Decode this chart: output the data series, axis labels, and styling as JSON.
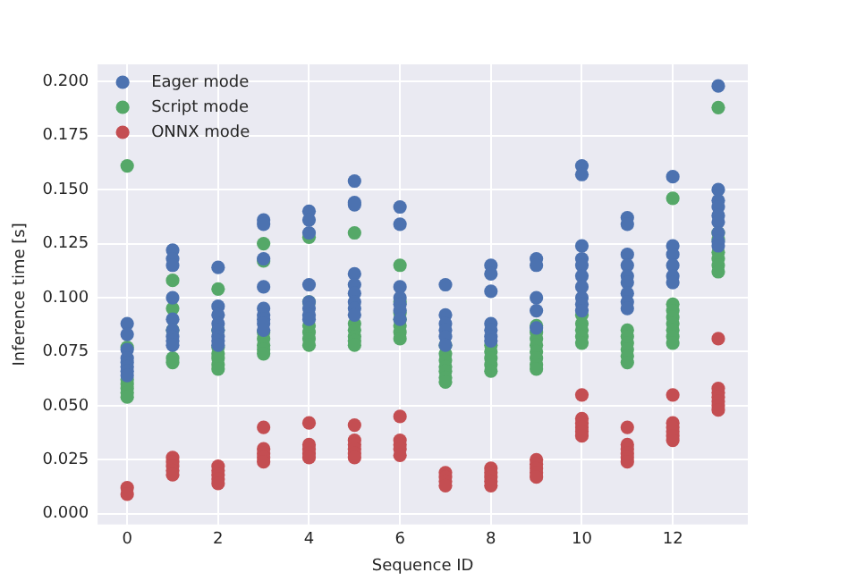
{
  "chart_data": {
    "type": "scatter",
    "xlabel": "Sequence ID",
    "ylabel": "Inference time [s]",
    "xlim": [
      -0.65,
      13.65
    ],
    "xticks": [
      0,
      2,
      4,
      6,
      8,
      10,
      12
    ],
    "ylim": [
      -0.005,
      0.208
    ],
    "yticks": [
      {
        "value": 0,
        "label": "0.000"
      },
      {
        "value": 0.025,
        "label": "0.025"
      },
      {
        "value": 0.05,
        "label": "0.050"
      },
      {
        "value": 0.075,
        "label": "0.075"
      },
      {
        "value": 0.1,
        "label": "0.100"
      },
      {
        "value": 0.125,
        "label": "0.125"
      },
      {
        "value": 0.15,
        "label": "0.150"
      },
      {
        "value": 0.175,
        "label": "0.175"
      },
      {
        "value": 0.2,
        "label": "0.200"
      }
    ],
    "grid": true,
    "legend": "top left",
    "marker": "circle",
    "series": [
      {
        "name": "Eager mode",
        "color": "#4c72b0",
        "x": [
          0,
          0,
          0,
          0,
          0,
          0,
          0,
          0,
          1,
          1,
          1,
          1,
          1,
          1,
          1,
          1,
          1,
          2,
          2,
          2,
          2,
          2,
          2,
          2,
          2,
          3,
          3,
          3,
          3,
          3,
          3,
          3,
          3,
          3,
          4,
          4,
          4,
          4,
          4,
          4,
          4,
          4,
          5,
          5,
          5,
          5,
          5,
          5,
          5,
          5,
          5,
          6,
          6,
          6,
          6,
          6,
          6,
          6,
          7,
          7,
          7,
          7,
          7,
          7,
          8,
          8,
          8,
          8,
          8,
          8,
          8,
          9,
          9,
          9,
          9,
          9,
          10,
          10,
          10,
          10,
          10,
          10,
          10,
          10,
          10,
          10,
          11,
          11,
          11,
          11,
          11,
          11,
          11,
          11,
          11,
          12,
          12,
          12,
          12,
          12,
          12,
          13,
          13,
          13,
          13,
          13,
          13,
          13,
          13,
          13
        ],
        "values": [
          0.088,
          0.083,
          0.076,
          0.072,
          0.07,
          0.068,
          0.066,
          0.064,
          0.122,
          0.118,
          0.115,
          0.1,
          0.09,
          0.085,
          0.082,
          0.08,
          0.078,
          0.114,
          0.096,
          0.092,
          0.088,
          0.085,
          0.082,
          0.08,
          0.078,
          0.136,
          0.134,
          0.118,
          0.105,
          0.095,
          0.092,
          0.09,
          0.088,
          0.085,
          0.14,
          0.136,
          0.13,
          0.106,
          0.098,
          0.095,
          0.092,
          0.09,
          0.154,
          0.144,
          0.143,
          0.111,
          0.106,
          0.102,
          0.098,
          0.095,
          0.092,
          0.142,
          0.134,
          0.105,
          0.1,
          0.097,
          0.094,
          0.09,
          0.106,
          0.092,
          0.088,
          0.085,
          0.082,
          0.078,
          0.115,
          0.111,
          0.103,
          0.088,
          0.085,
          0.082,
          0.08,
          0.118,
          0.115,
          0.1,
          0.094,
          0.086,
          0.161,
          0.157,
          0.124,
          0.118,
          0.115,
          0.11,
          0.105,
          0.1,
          0.097,
          0.094,
          0.137,
          0.134,
          0.12,
          0.115,
          0.11,
          0.107,
          0.102,
          0.098,
          0.095,
          0.156,
          0.124,
          0.12,
          0.115,
          0.11,
          0.107,
          0.198,
          0.15,
          0.145,
          0.142,
          0.138,
          0.135,
          0.13,
          0.126,
          0.124
        ]
      },
      {
        "name": "Script mode",
        "color": "#55a868",
        "x": [
          0,
          0,
          0,
          0,
          0,
          0,
          0,
          1,
          1,
          1,
          1,
          1,
          2,
          2,
          2,
          2,
          2,
          2,
          2,
          3,
          3,
          3,
          3,
          3,
          3,
          3,
          4,
          4,
          4,
          4,
          4,
          4,
          5,
          5,
          5,
          5,
          5,
          5,
          6,
          6,
          6,
          6,
          6,
          6,
          6,
          7,
          7,
          7,
          7,
          7,
          7,
          7,
          8,
          8,
          8,
          8,
          8,
          9,
          9,
          9,
          9,
          9,
          9,
          9,
          9,
          10,
          10,
          10,
          10,
          10,
          11,
          11,
          11,
          11,
          11,
          11,
          12,
          12,
          12,
          12,
          12,
          12,
          12,
          12,
          13,
          13,
          13,
          13,
          13,
          13,
          13
        ],
        "values": [
          0.161,
          0.077,
          0.062,
          0.06,
          0.058,
          0.056,
          0.054,
          0.108,
          0.095,
          0.085,
          0.072,
          0.07,
          0.104,
          0.085,
          0.077,
          0.074,
          0.072,
          0.069,
          0.067,
          0.125,
          0.117,
          0.084,
          0.081,
          0.078,
          0.076,
          0.074,
          0.128,
          0.098,
          0.087,
          0.084,
          0.081,
          0.078,
          0.13,
          0.088,
          0.085,
          0.082,
          0.08,
          0.078,
          0.115,
          0.098,
          0.093,
          0.09,
          0.087,
          0.084,
          0.081,
          0.078,
          0.074,
          0.071,
          0.068,
          0.066,
          0.063,
          0.061,
          0.078,
          0.075,
          0.072,
          0.069,
          0.066,
          0.087,
          0.084,
          0.081,
          0.078,
          0.075,
          0.072,
          0.069,
          0.067,
          0.092,
          0.088,
          0.085,
          0.082,
          0.079,
          0.085,
          0.082,
          0.079,
          0.076,
          0.073,
          0.07,
          0.146,
          0.097,
          0.094,
          0.091,
          0.088,
          0.085,
          0.082,
          0.079,
          0.188,
          0.13,
          0.127,
          0.121,
          0.118,
          0.115,
          0.112
        ]
      },
      {
        "name": "ONNX mode",
        "color": "#c44e52",
        "x": [
          0,
          0,
          1,
          1,
          1,
          1,
          1,
          2,
          2,
          2,
          2,
          2,
          3,
          3,
          3,
          3,
          3,
          4,
          4,
          4,
          4,
          4,
          5,
          5,
          5,
          5,
          5,
          5,
          6,
          6,
          6,
          6,
          6,
          7,
          7,
          7,
          7,
          8,
          8,
          8,
          8,
          8,
          9,
          9,
          9,
          9,
          9,
          10,
          10,
          10,
          10,
          10,
          10,
          11,
          11,
          11,
          11,
          11,
          11,
          12,
          12,
          12,
          12,
          12,
          12,
          13,
          13,
          13,
          13,
          13,
          13,
          13
        ],
        "values": [
          0.012,
          0.009,
          0.026,
          0.024,
          0.022,
          0.02,
          0.018,
          0.022,
          0.02,
          0.018,
          0.016,
          0.014,
          0.04,
          0.03,
          0.028,
          0.026,
          0.024,
          0.042,
          0.032,
          0.03,
          0.028,
          0.026,
          0.041,
          0.034,
          0.032,
          0.03,
          0.028,
          0.026,
          0.045,
          0.034,
          0.032,
          0.03,
          0.027,
          0.019,
          0.017,
          0.015,
          0.013,
          0.021,
          0.019,
          0.017,
          0.015,
          0.013,
          0.025,
          0.023,
          0.021,
          0.019,
          0.017,
          0.055,
          0.044,
          0.042,
          0.04,
          0.038,
          0.036,
          0.04,
          0.032,
          0.03,
          0.028,
          0.026,
          0.024,
          0.055,
          0.042,
          0.04,
          0.038,
          0.036,
          0.034,
          0.081,
          0.058,
          0.056,
          0.054,
          0.052,
          0.05,
          0.048
        ]
      }
    ]
  }
}
